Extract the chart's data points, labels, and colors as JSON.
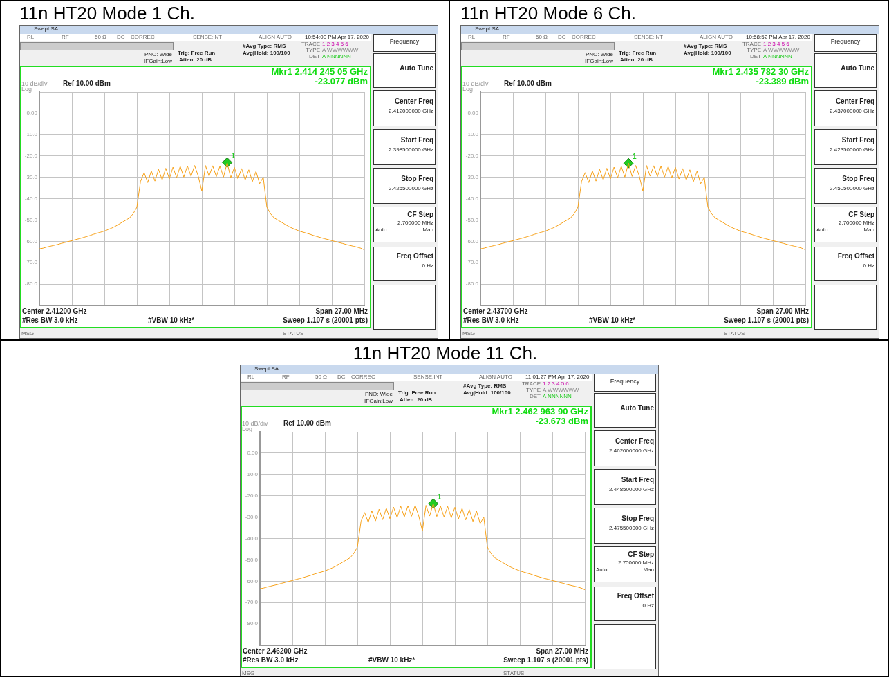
{
  "chart_data": [
    {
      "type": "line",
      "title": "11n HT20 Mode 1 Ch.",
      "categories": [
        null,
        null,
        null,
        null,
        null,
        null,
        null,
        null,
        null,
        null,
        null,
        null,
        null,
        null,
        null,
        null,
        null,
        null,
        null,
        null,
        null,
        null,
        null,
        null,
        null,
        null,
        null,
        null,
        null,
        null,
        null,
        null,
        null,
        null,
        null,
        null,
        null,
        null,
        null,
        null,
        null,
        null,
        null,
        null,
        null,
        null,
        null,
        null,
        null,
        null,
        null,
        null,
        null,
        null,
        null,
        null,
        null,
        null,
        null,
        null,
        null,
        null,
        null,
        null,
        null,
        null,
        null,
        null,
        null,
        null,
        null,
        null,
        null,
        null,
        null,
        null,
        null,
        null,
        null,
        null,
        null,
        null,
        null,
        null,
        null,
        null,
        null,
        null,
        null,
        null,
        null
      ],
      "ylim": [
        -90,
        10
      ],
      "yticks": [
        {
          "value": 10,
          "label": null
        },
        {
          "value": 0,
          "label": "0.00"
        },
        {
          "value": -10,
          "label": "-10.0"
        },
        {
          "value": -20,
          "label": "-20.0"
        },
        {
          "value": -30,
          "label": "-30.0"
        },
        {
          "value": -40,
          "label": "-40.0"
        },
        {
          "value": -50,
          "label": "-50.0"
        },
        {
          "value": -60,
          "label": "-60.0"
        },
        {
          "value": -70,
          "label": "-70.0"
        },
        {
          "value": -80,
          "label": "-80.0"
        },
        {
          "value": -90,
          "label": null
        }
      ],
      "grid": true,
      "tick_labels": "y",
      "series": [
        {
          "color": "#f7a21b",
          "marker": "none",
          "values": [
            -63.5,
            -63.2,
            -62.7,
            -62.3,
            -61.9,
            -61.5,
            -61.0,
            -60.6,
            -60.1,
            -59.7,
            -59.2,
            -58.8,
            -58.3,
            -57.8,
            -57.3,
            -56.7,
            -56.2,
            -55.7,
            -55.2,
            -54.5,
            -53.8,
            -53.0,
            -52.0,
            -51.0,
            -50.0,
            -49.0,
            -47.0,
            -44.0,
            -32.0,
            -27.8,
            -32.5,
            -27.0,
            -31.8,
            -26.3,
            -31.2,
            -25.8,
            -30.7,
            -25.3,
            -30.2,
            -24.9,
            -29.9,
            -24.7,
            -29.6,
            -24.5,
            -29.5,
            -36.5,
            -24.5,
            -29.5,
            -24.6,
            -29.7,
            -24.8,
            -29.9,
            -23.1,
            -30.3,
            -25.4,
            -30.8,
            -25.9,
            -31.3,
            -26.5,
            -32.0,
            -27.2,
            -33.0,
            -30.0,
            -44.0,
            -47.0,
            -49.0,
            -50.0,
            -51.0,
            -52.0,
            -53.0,
            -53.8,
            -54.5,
            -55.2,
            -55.7,
            -56.2,
            -56.7,
            -57.3,
            -57.8,
            -58.3,
            -58.8,
            -59.2,
            -59.7,
            -60.1,
            -60.6,
            -61.0,
            -61.5,
            -61.9,
            -62.3,
            -62.7,
            -63.2,
            -64.0
          ]
        },
        {
          "type": "scatter",
          "name": "1",
          "color": "#22cc22",
          "marker": "diamond",
          "values": [
            null,
            null,
            null,
            null,
            null,
            null,
            null,
            null,
            null,
            null,
            null,
            null,
            null,
            null,
            null,
            null,
            null,
            null,
            null,
            null,
            null,
            null,
            null,
            null,
            null,
            null,
            null,
            null,
            null,
            null,
            null,
            null,
            null,
            null,
            null,
            null,
            null,
            null,
            null,
            null,
            null,
            null,
            null,
            null,
            null,
            null,
            null,
            null,
            null,
            null,
            null,
            null,
            -23.077,
            null,
            null,
            null,
            null,
            null,
            null,
            null,
            null,
            null,
            null,
            null,
            null,
            null,
            null,
            null,
            null,
            null,
            null,
            null,
            null,
            null,
            null,
            null,
            null,
            null,
            null,
            null,
            null,
            null,
            null,
            null,
            null,
            null,
            null,
            null,
            null,
            null,
            null
          ]
        }
      ],
      "annotations": [
        "Swept SA",
        "10:54:00 PM Apr 17, 2020",
        "PNO: Wide",
        "IFGain:Low",
        "Trig: Free Run",
        "Atten: 20 dB",
        "#Avg Type: RMS",
        "Avg|Hold: 100/100",
        "Mkr1 2.414 245 05 GHz",
        "-23.077 dBm",
        "10 dB/div",
        "Ref 10.00 dBm",
        "Log",
        "Center 2.41200 GHz",
        "Span 27.00 MHz",
        "#Res BW 3.0 kHz",
        "#VBW 10 kHz*",
        "Sweep  1.107 s (20001 pts)",
        "Frequency",
        "Auto Tune",
        "Center Freq",
        "2.412000000 GHz",
        "Start Freq",
        "2.398500000 GHz",
        "Stop Freq",
        "2.425500000 GHz",
        "CF Step",
        "2.700000 MHz",
        "Auto",
        "Man",
        "Freq Offset",
        "0 Hz",
        "RL",
        "RF",
        "50 Ω",
        "DC",
        "CORREC",
        "SENSE:INT",
        "ALIGN AUTO",
        "MSG",
        "STATUS",
        "TRACE",
        "TYPE",
        "DET",
        "1 2 3 4 5 6",
        "A WWWWWW",
        "A NNNNNN"
      ]
    },
    {
      "type": "line",
      "title": "11n HT20 Mode 6 Ch.",
      "categories": [
        null,
        null,
        null,
        null,
        null,
        null,
        null,
        null,
        null,
        null,
        null,
        null,
        null,
        null,
        null,
        null,
        null,
        null,
        null,
        null,
        null,
        null,
        null,
        null,
        null,
        null,
        null,
        null,
        null,
        null,
        null,
        null,
        null,
        null,
        null,
        null,
        null,
        null,
        null,
        null,
        null,
        null,
        null,
        null,
        null,
        null,
        null,
        null,
        null,
        null,
        null,
        null,
        null,
        null,
        null,
        null,
        null,
        null,
        null,
        null,
        null,
        null,
        null,
        null,
        null,
        null,
        null,
        null,
        null,
        null,
        null,
        null,
        null,
        null,
        null,
        null,
        null,
        null,
        null,
        null,
        null,
        null,
        null,
        null,
        null,
        null,
        null,
        null,
        null,
        null,
        null
      ],
      "ylim": [
        -90,
        10
      ],
      "yticks": [
        {
          "value": 10,
          "label": null
        },
        {
          "value": 0,
          "label": "0.00"
        },
        {
          "value": -10,
          "label": "-10.0"
        },
        {
          "value": -20,
          "label": "-20.0"
        },
        {
          "value": -30,
          "label": "-30.0"
        },
        {
          "value": -40,
          "label": "-40.0"
        },
        {
          "value": -50,
          "label": "-50.0"
        },
        {
          "value": -60,
          "label": "-60.0"
        },
        {
          "value": -70,
          "label": "-70.0"
        },
        {
          "value": -80,
          "label": "-80.0"
        },
        {
          "value": -90,
          "label": null
        }
      ],
      "grid": true,
      "tick_labels": "y",
      "series": [
        {
          "color": "#f7a21b",
          "marker": "none",
          "values": [
            -63.5,
            -63.2,
            -62.7,
            -62.3,
            -61.9,
            -61.5,
            -61.0,
            -60.6,
            -60.1,
            -59.7,
            -59.2,
            -58.8,
            -58.3,
            -57.8,
            -57.3,
            -56.7,
            -56.2,
            -55.7,
            -55.2,
            -54.5,
            -53.8,
            -53.0,
            -52.0,
            -51.0,
            -50.0,
            -49.0,
            -47.0,
            -44.0,
            -32.0,
            -27.8,
            -32.5,
            -27.0,
            -31.8,
            -26.3,
            -31.2,
            -25.8,
            -30.7,
            -25.3,
            -30.2,
            -24.9,
            -29.9,
            -23.4,
            -29.6,
            -24.5,
            -29.5,
            -36.5,
            -24.5,
            -29.5,
            -24.6,
            -29.7,
            -24.8,
            -29.9,
            -25.0,
            -30.3,
            -25.4,
            -30.8,
            -25.9,
            -31.3,
            -26.5,
            -32.0,
            -27.2,
            -33.0,
            -30.0,
            -44.0,
            -47.0,
            -49.0,
            -50.0,
            -51.0,
            -52.0,
            -53.0,
            -53.8,
            -54.5,
            -55.2,
            -55.7,
            -56.2,
            -56.7,
            -57.3,
            -57.8,
            -58.3,
            -58.8,
            -59.2,
            -59.7,
            -60.1,
            -60.6,
            -61.0,
            -61.5,
            -61.9,
            -62.3,
            -62.7,
            -63.2,
            -64.0
          ]
        },
        {
          "type": "scatter",
          "name": "1",
          "color": "#22cc22",
          "marker": "diamond",
          "values": [
            null,
            null,
            null,
            null,
            null,
            null,
            null,
            null,
            null,
            null,
            null,
            null,
            null,
            null,
            null,
            null,
            null,
            null,
            null,
            null,
            null,
            null,
            null,
            null,
            null,
            null,
            null,
            null,
            null,
            null,
            null,
            null,
            null,
            null,
            null,
            null,
            null,
            null,
            null,
            null,
            null,
            -23.389,
            null,
            null,
            null,
            null,
            null,
            null,
            null,
            null,
            null,
            null,
            null,
            null,
            null,
            null,
            null,
            null,
            null,
            null,
            null,
            null,
            null,
            null,
            null,
            null,
            null,
            null,
            null,
            null,
            null,
            null,
            null,
            null,
            null,
            null,
            null,
            null,
            null,
            null,
            null,
            null,
            null,
            null,
            null,
            null,
            null,
            null,
            null,
            null,
            null
          ]
        }
      ],
      "annotations": [
        "Swept SA",
        "10:58:52 PM Apr 17, 2020",
        "PNO: Wide",
        "IFGain:Low",
        "Trig: Free Run",
        "Atten: 20 dB",
        "#Avg Type: RMS",
        "Avg|Hold: 100/100",
        "Mkr1 2.435 782 30 GHz",
        "-23.389 dBm",
        "10 dB/div",
        "Ref 10.00 dBm",
        "Log",
        "Center 2.43700 GHz",
        "Span 27.00 MHz",
        "#Res BW 3.0 kHz",
        "#VBW 10 kHz*",
        "Sweep  1.107 s (20001 pts)",
        "Frequency",
        "Auto Tune",
        "Center Freq",
        "2.437000000 GHz",
        "Start Freq",
        "2.423500000 GHz",
        "Stop Freq",
        "2.450500000 GHz",
        "CF Step",
        "2.700000 MHz",
        "Auto",
        "Man",
        "Freq Offset",
        "0 Hz",
        "RL",
        "RF",
        "50 Ω",
        "DC",
        "CORREC",
        "SENSE:INT",
        "ALIGN AUTO",
        "MSG",
        "STATUS",
        "TRACE",
        "TYPE",
        "DET",
        "1 2 3 4 5 6",
        "A WWWWWW",
        "A NNNNNN"
      ]
    },
    {
      "type": "line",
      "title": "11n HT20 Mode 11 Ch.",
      "categories": [
        null,
        null,
        null,
        null,
        null,
        null,
        null,
        null,
        null,
        null,
        null,
        null,
        null,
        null,
        null,
        null,
        null,
        null,
        null,
        null,
        null,
        null,
        null,
        null,
        null,
        null,
        null,
        null,
        null,
        null,
        null,
        null,
        null,
        null,
        null,
        null,
        null,
        null,
        null,
        null,
        null,
        null,
        null,
        null,
        null,
        null,
        null,
        null,
        null,
        null,
        null,
        null,
        null,
        null,
        null,
        null,
        null,
        null,
        null,
        null,
        null,
        null,
        null,
        null,
        null,
        null,
        null,
        null,
        null,
        null,
        null,
        null,
        null,
        null,
        null,
        null,
        null,
        null,
        null,
        null,
        null,
        null,
        null,
        null,
        null,
        null,
        null,
        null,
        null,
        null,
        null
      ],
      "ylim": [
        -90,
        10
      ],
      "yticks": [
        {
          "value": 10,
          "label": null
        },
        {
          "value": 0,
          "label": "0.00"
        },
        {
          "value": -10,
          "label": "-10.0"
        },
        {
          "value": -20,
          "label": "-20.0"
        },
        {
          "value": -30,
          "label": "-30.0"
        },
        {
          "value": -40,
          "label": "-40.0"
        },
        {
          "value": -50,
          "label": "-50.0"
        },
        {
          "value": -60,
          "label": "-60.0"
        },
        {
          "value": -70,
          "label": "-70.0"
        },
        {
          "value": -80,
          "label": "-80.0"
        },
        {
          "value": -90,
          "label": null
        }
      ],
      "grid": true,
      "tick_labels": "y",
      "series": [
        {
          "color": "#f7a21b",
          "marker": "none",
          "values": [
            -63.5,
            -63.2,
            -62.7,
            -62.3,
            -61.9,
            -61.5,
            -61.0,
            -60.6,
            -60.1,
            -59.7,
            -59.2,
            -58.8,
            -58.3,
            -57.8,
            -57.3,
            -56.7,
            -56.2,
            -55.7,
            -55.2,
            -54.5,
            -53.8,
            -53.0,
            -52.0,
            -51.0,
            -50.0,
            -49.0,
            -47.0,
            -44.0,
            -32.0,
            -27.8,
            -32.5,
            -27.0,
            -31.8,
            -26.3,
            -31.2,
            -25.8,
            -30.7,
            -25.3,
            -30.2,
            -24.9,
            -29.9,
            -24.7,
            -29.6,
            -24.5,
            -29.5,
            -36.5,
            -24.5,
            -29.5,
            -23.7,
            -29.7,
            -24.8,
            -29.9,
            -25.0,
            -30.3,
            -25.4,
            -30.8,
            -25.9,
            -31.3,
            -26.5,
            -32.0,
            -27.2,
            -33.0,
            -30.0,
            -44.0,
            -47.0,
            -49.0,
            -50.0,
            -51.0,
            -52.0,
            -53.0,
            -53.8,
            -54.5,
            -55.2,
            -55.7,
            -56.2,
            -56.7,
            -57.3,
            -57.8,
            -58.3,
            -58.8,
            -59.2,
            -59.7,
            -60.1,
            -60.6,
            -61.0,
            -61.5,
            -61.9,
            -62.3,
            -62.7,
            -63.2,
            -64.0
          ]
        },
        {
          "type": "scatter",
          "name": "1",
          "color": "#22cc22",
          "marker": "diamond",
          "values": [
            null,
            null,
            null,
            null,
            null,
            null,
            null,
            null,
            null,
            null,
            null,
            null,
            null,
            null,
            null,
            null,
            null,
            null,
            null,
            null,
            null,
            null,
            null,
            null,
            null,
            null,
            null,
            null,
            null,
            null,
            null,
            null,
            null,
            null,
            null,
            null,
            null,
            null,
            null,
            null,
            null,
            null,
            null,
            null,
            null,
            null,
            null,
            null,
            -23.673,
            null,
            null,
            null,
            null,
            null,
            null,
            null,
            null,
            null,
            null,
            null,
            null,
            null,
            null,
            null,
            null,
            null,
            null,
            null,
            null,
            null,
            null,
            null,
            null,
            null,
            null,
            null,
            null,
            null,
            null,
            null,
            null,
            null,
            null,
            null,
            null,
            null,
            null,
            null,
            null,
            null,
            null
          ]
        }
      ],
      "annotations": [
        "Swept SA",
        "11:01:27 PM Apr 17, 2020",
        "PNO: Wide",
        "IFGain:Low",
        "Trig: Free Run",
        "Atten: 20 dB",
        "#Avg Type: RMS",
        "Avg|Hold: 100/100",
        "Mkr1 2.462 963 90 GHz",
        "-23.673 dBm",
        "10 dB/div",
        "Ref 10.00 dBm",
        "Log",
        "Center 2.46200 GHz",
        "Span 27.00 MHz",
        "#Res BW 3.0 kHz",
        "#VBW 10 kHz*",
        "Sweep  1.107 s (20001 pts)",
        "Frequency",
        "Auto Tune",
        "Center Freq",
        "2.462000000 GHz",
        "Start Freq",
        "2.448500000 GHz",
        "Stop Freq",
        "2.475500000 GHz",
        "CF Step",
        "2.700000 MHz",
        "Auto",
        "Man",
        "Freq Offset",
        "0 Hz",
        "RL",
        "RF",
        "50 Ω",
        "DC",
        "CORREC",
        "SENSE:INT",
        "ALIGN AUTO",
        "MSG",
        "STATUS",
        "TRACE",
        "TYPE",
        "DET",
        "1 2 3 4 5 6",
        "A WWWWWW",
        "A NNNNNN"
      ]
    }
  ]
}
